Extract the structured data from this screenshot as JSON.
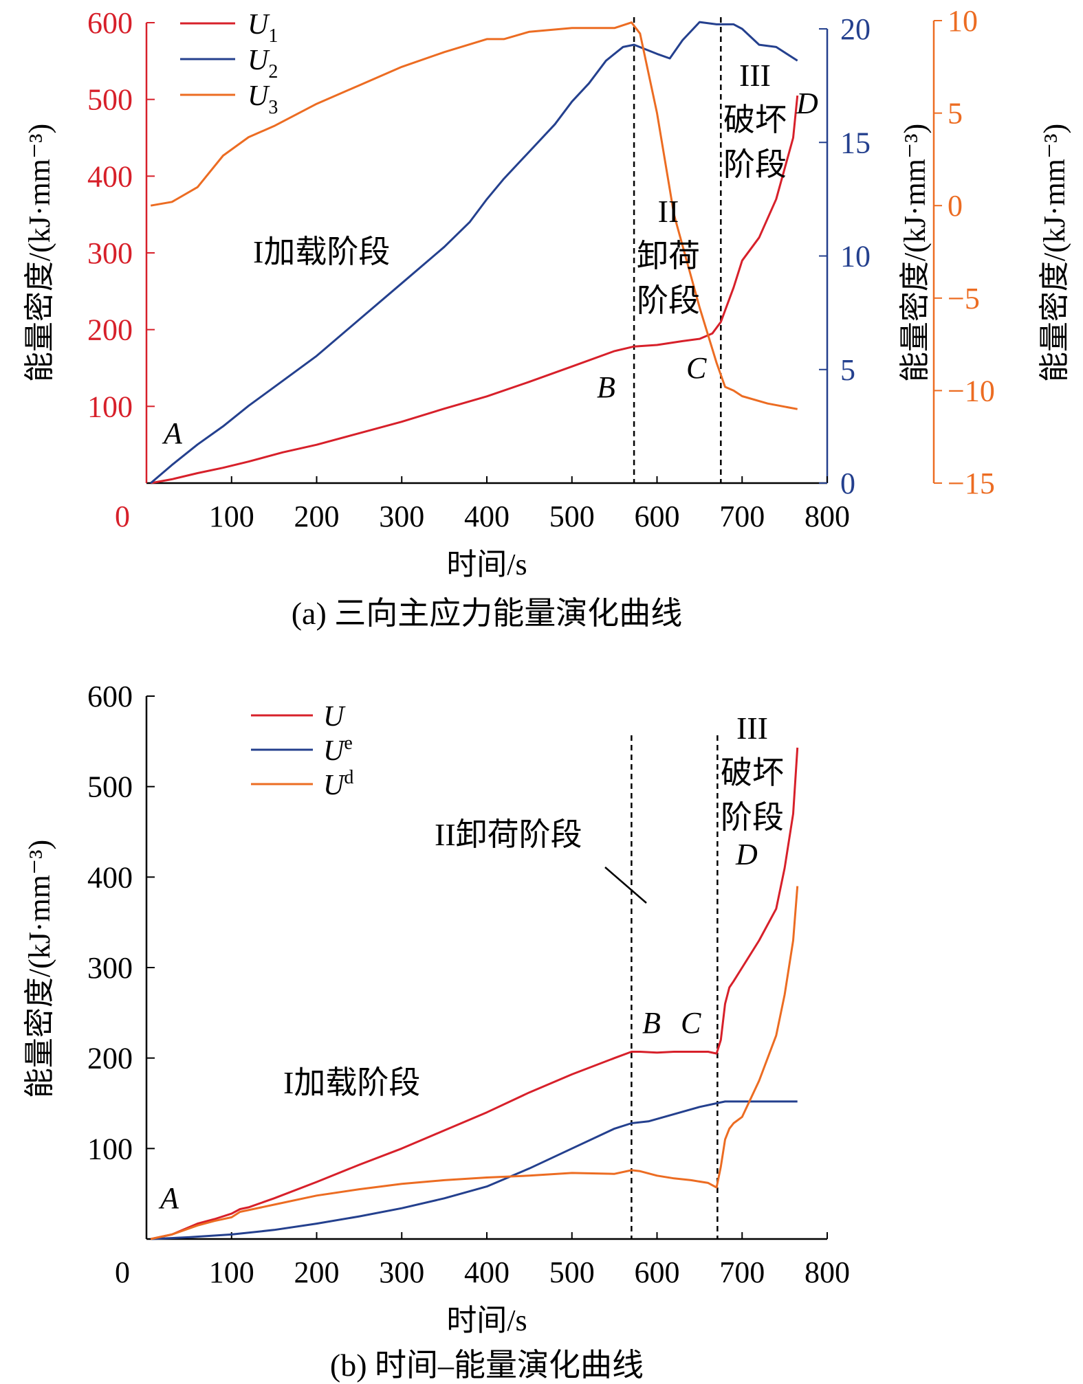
{
  "colors": {
    "red": "#d7202a",
    "blue": "#24408e",
    "orange": "#ec6c22",
    "black": "#000000"
  },
  "panel_a": {
    "caption": "(a) 三向主应力能量演化曲线",
    "xlabel": "时间/s",
    "ylabel_left": "能量密度/(kJ·mm⁻³)",
    "ylabel_mid": "能量密度/(kJ·mm⁻³)",
    "ylabel_right": "能量密度/(kJ·mm⁻³)",
    "x_ticks": [
      "0",
      "100",
      "200",
      "300",
      "400",
      "500",
      "600",
      "700",
      "800"
    ],
    "y_left_ticks": [
      "100",
      "200",
      "300",
      "400",
      "500",
      "600"
    ],
    "y_mid_ticks": [
      "0",
      "5",
      "10",
      "15",
      "20"
    ],
    "y_right_ticks": [
      "−15",
      "−10",
      "−5",
      "0",
      "5",
      "10"
    ],
    "legend": [
      {
        "base": "U",
        "sub": "1"
      },
      {
        "base": "U",
        "sub": "2"
      },
      {
        "base": "U",
        "sub": "3"
      }
    ],
    "stage_labels": {
      "stage1": "I加载阶段",
      "stage2_num": "II",
      "stage2_l1": "卸荷",
      "stage2_l2": "阶段",
      "stage3_num": "III",
      "stage3_l1": "破坏",
      "stage3_l2": "阶段"
    },
    "points": {
      "A": "A",
      "B": "B",
      "C": "C",
      "D": "D"
    }
  },
  "panel_b": {
    "caption": "(b) 时间–能量演化曲线",
    "xlabel": "时间/s",
    "ylabel": "能量密度/(kJ·mm⁻³)",
    "x_ticks": [
      "0",
      "100",
      "200",
      "300",
      "400",
      "500",
      "600",
      "700",
      "800"
    ],
    "y_ticks": [
      "100",
      "200",
      "300",
      "400",
      "500",
      "600"
    ],
    "legend": [
      {
        "base": "U",
        "sup": ""
      },
      {
        "base": "U",
        "sup": "e"
      },
      {
        "base": "U",
        "sup": "d"
      }
    ],
    "stage_labels": {
      "stage1": "I加载阶段",
      "stage2": "II卸荷阶段",
      "stage3_num": "III",
      "stage3_l1": "破坏",
      "stage3_l2": "阶段"
    },
    "points": {
      "A": "A",
      "B": "B",
      "C": "C",
      "D": "D"
    }
  },
  "chart_data": [
    {
      "type": "line",
      "xlabel": "时间/s",
      "ylabel": "能量密度/(kJ·mm⁻³)",
      "xlim": [
        0,
        800
      ],
      "axes": {
        "left": {
          "ylim": [
            0,
            600
          ],
          "ticks": [
            100,
            200,
            300,
            400,
            500,
            600
          ]
        },
        "mid": {
          "ylim": [
            0,
            20
          ],
          "ticks": [
            0,
            5,
            10,
            15,
            20
          ]
        },
        "right": {
          "ylim": [
            -15,
            10
          ],
          "ticks": [
            -15,
            -10,
            -5,
            0,
            5,
            10
          ]
        }
      },
      "vlines": [
        573,
        675
      ],
      "series": [
        {
          "name": "U1",
          "axis": "left",
          "color": "#d7202a",
          "x": [
            5,
            30,
            60,
            90,
            120,
            160,
            200,
            250,
            300,
            350,
            400,
            450,
            500,
            550,
            573,
            600,
            630,
            650,
            665,
            675,
            690,
            700,
            720,
            740,
            760,
            765
          ],
          "y": [
            0,
            5,
            13,
            20,
            28,
            40,
            50,
            65,
            80,
            97,
            113,
            132,
            152,
            172,
            178,
            180,
            185,
            188,
            195,
            210,
            255,
            290,
            320,
            370,
            450,
            505
          ]
        },
        {
          "name": "U2",
          "axis": "mid",
          "color": "#24408e",
          "x": [
            5,
            30,
            60,
            90,
            120,
            160,
            200,
            250,
            300,
            350,
            380,
            400,
            420,
            450,
            480,
            500,
            520,
            540,
            560,
            573,
            600,
            615,
            630,
            650,
            670,
            690,
            700,
            720,
            740,
            765
          ],
          "y": [
            0,
            0.8,
            1.7,
            2.5,
            3.4,
            4.5,
            5.6,
            7.2,
            8.8,
            10.4,
            11.5,
            12.5,
            13.4,
            14.6,
            15.8,
            16.8,
            17.6,
            18.6,
            19.2,
            19.3,
            18.9,
            18.7,
            19.5,
            20.3,
            20.2,
            20.2,
            20.0,
            19.3,
            19.2,
            18.6
          ]
        },
        {
          "name": "U3",
          "axis": "right",
          "color": "#ec6c22",
          "x": [
            5,
            30,
            60,
            90,
            120,
            150,
            200,
            250,
            300,
            350,
            400,
            420,
            450,
            500,
            550,
            570,
            580,
            600,
            620,
            650,
            670,
            680,
            690,
            700,
            730,
            765
          ],
          "y": [
            0,
            0.2,
            1.0,
            2.7,
            3.7,
            4.3,
            5.5,
            6.5,
            7.5,
            8.3,
            9.0,
            9.0,
            9.4,
            9.6,
            9.6,
            9.9,
            9.3,
            5.0,
            -0.5,
            -5.5,
            -8.5,
            -9.8,
            -10.0,
            -10.3,
            -10.7,
            -11.0
          ]
        }
      ]
    },
    {
      "type": "line",
      "xlabel": "时间/s",
      "ylabel": "能量密度/(kJ·mm⁻³)",
      "xlim": [
        0,
        800
      ],
      "ylim": [
        0,
        600
      ],
      "yticks": [
        100,
        200,
        300,
        400,
        500,
        600
      ],
      "vlines": [
        570,
        671
      ],
      "series": [
        {
          "name": "U",
          "color": "#d7202a",
          "x": [
            5,
            30,
            60,
            80,
            100,
            110,
            120,
            150,
            200,
            250,
            300,
            350,
            400,
            450,
            500,
            550,
            570,
            580,
            600,
            620,
            640,
            660,
            670,
            675,
            680,
            685,
            690,
            700,
            720,
            740,
            750,
            760,
            765
          ],
          "y": [
            0,
            5,
            17,
            22,
            28,
            33,
            35,
            45,
            63,
            82,
            100,
            120,
            140,
            162,
            182,
            200,
            207,
            207,
            206,
            207,
            207,
            207,
            205,
            220,
            260,
            278,
            285,
            300,
            330,
            365,
            410,
            470,
            543
          ]
        },
        {
          "name": "Ue",
          "color": "#24408e",
          "x": [
            5,
            50,
            100,
            150,
            200,
            250,
            300,
            350,
            400,
            450,
            500,
            550,
            570,
            590,
            620,
            650,
            670,
            680,
            700,
            765
          ],
          "y": [
            0,
            2,
            5,
            10,
            17,
            25,
            34,
            45,
            58,
            78,
            100,
            122,
            128,
            130,
            138,
            146,
            150,
            152,
            152,
            152
          ]
        },
        {
          "name": "Ud",
          "color": "#ec6c22",
          "x": [
            5,
            30,
            60,
            80,
            100,
            110,
            120,
            150,
            200,
            250,
            300,
            350,
            400,
            450,
            500,
            550,
            570,
            580,
            600,
            620,
            640,
            660,
            670,
            675,
            680,
            685,
            690,
            700,
            720,
            740,
            750,
            760,
            765
          ],
          "y": [
            0,
            5,
            15,
            20,
            24,
            30,
            32,
            38,
            48,
            55,
            61,
            65,
            68,
            70,
            73,
            72,
            76,
            75,
            70,
            67,
            65,
            62,
            57,
            80,
            110,
            122,
            128,
            135,
            175,
            225,
            270,
            330,
            390
          ]
        }
      ]
    }
  ]
}
